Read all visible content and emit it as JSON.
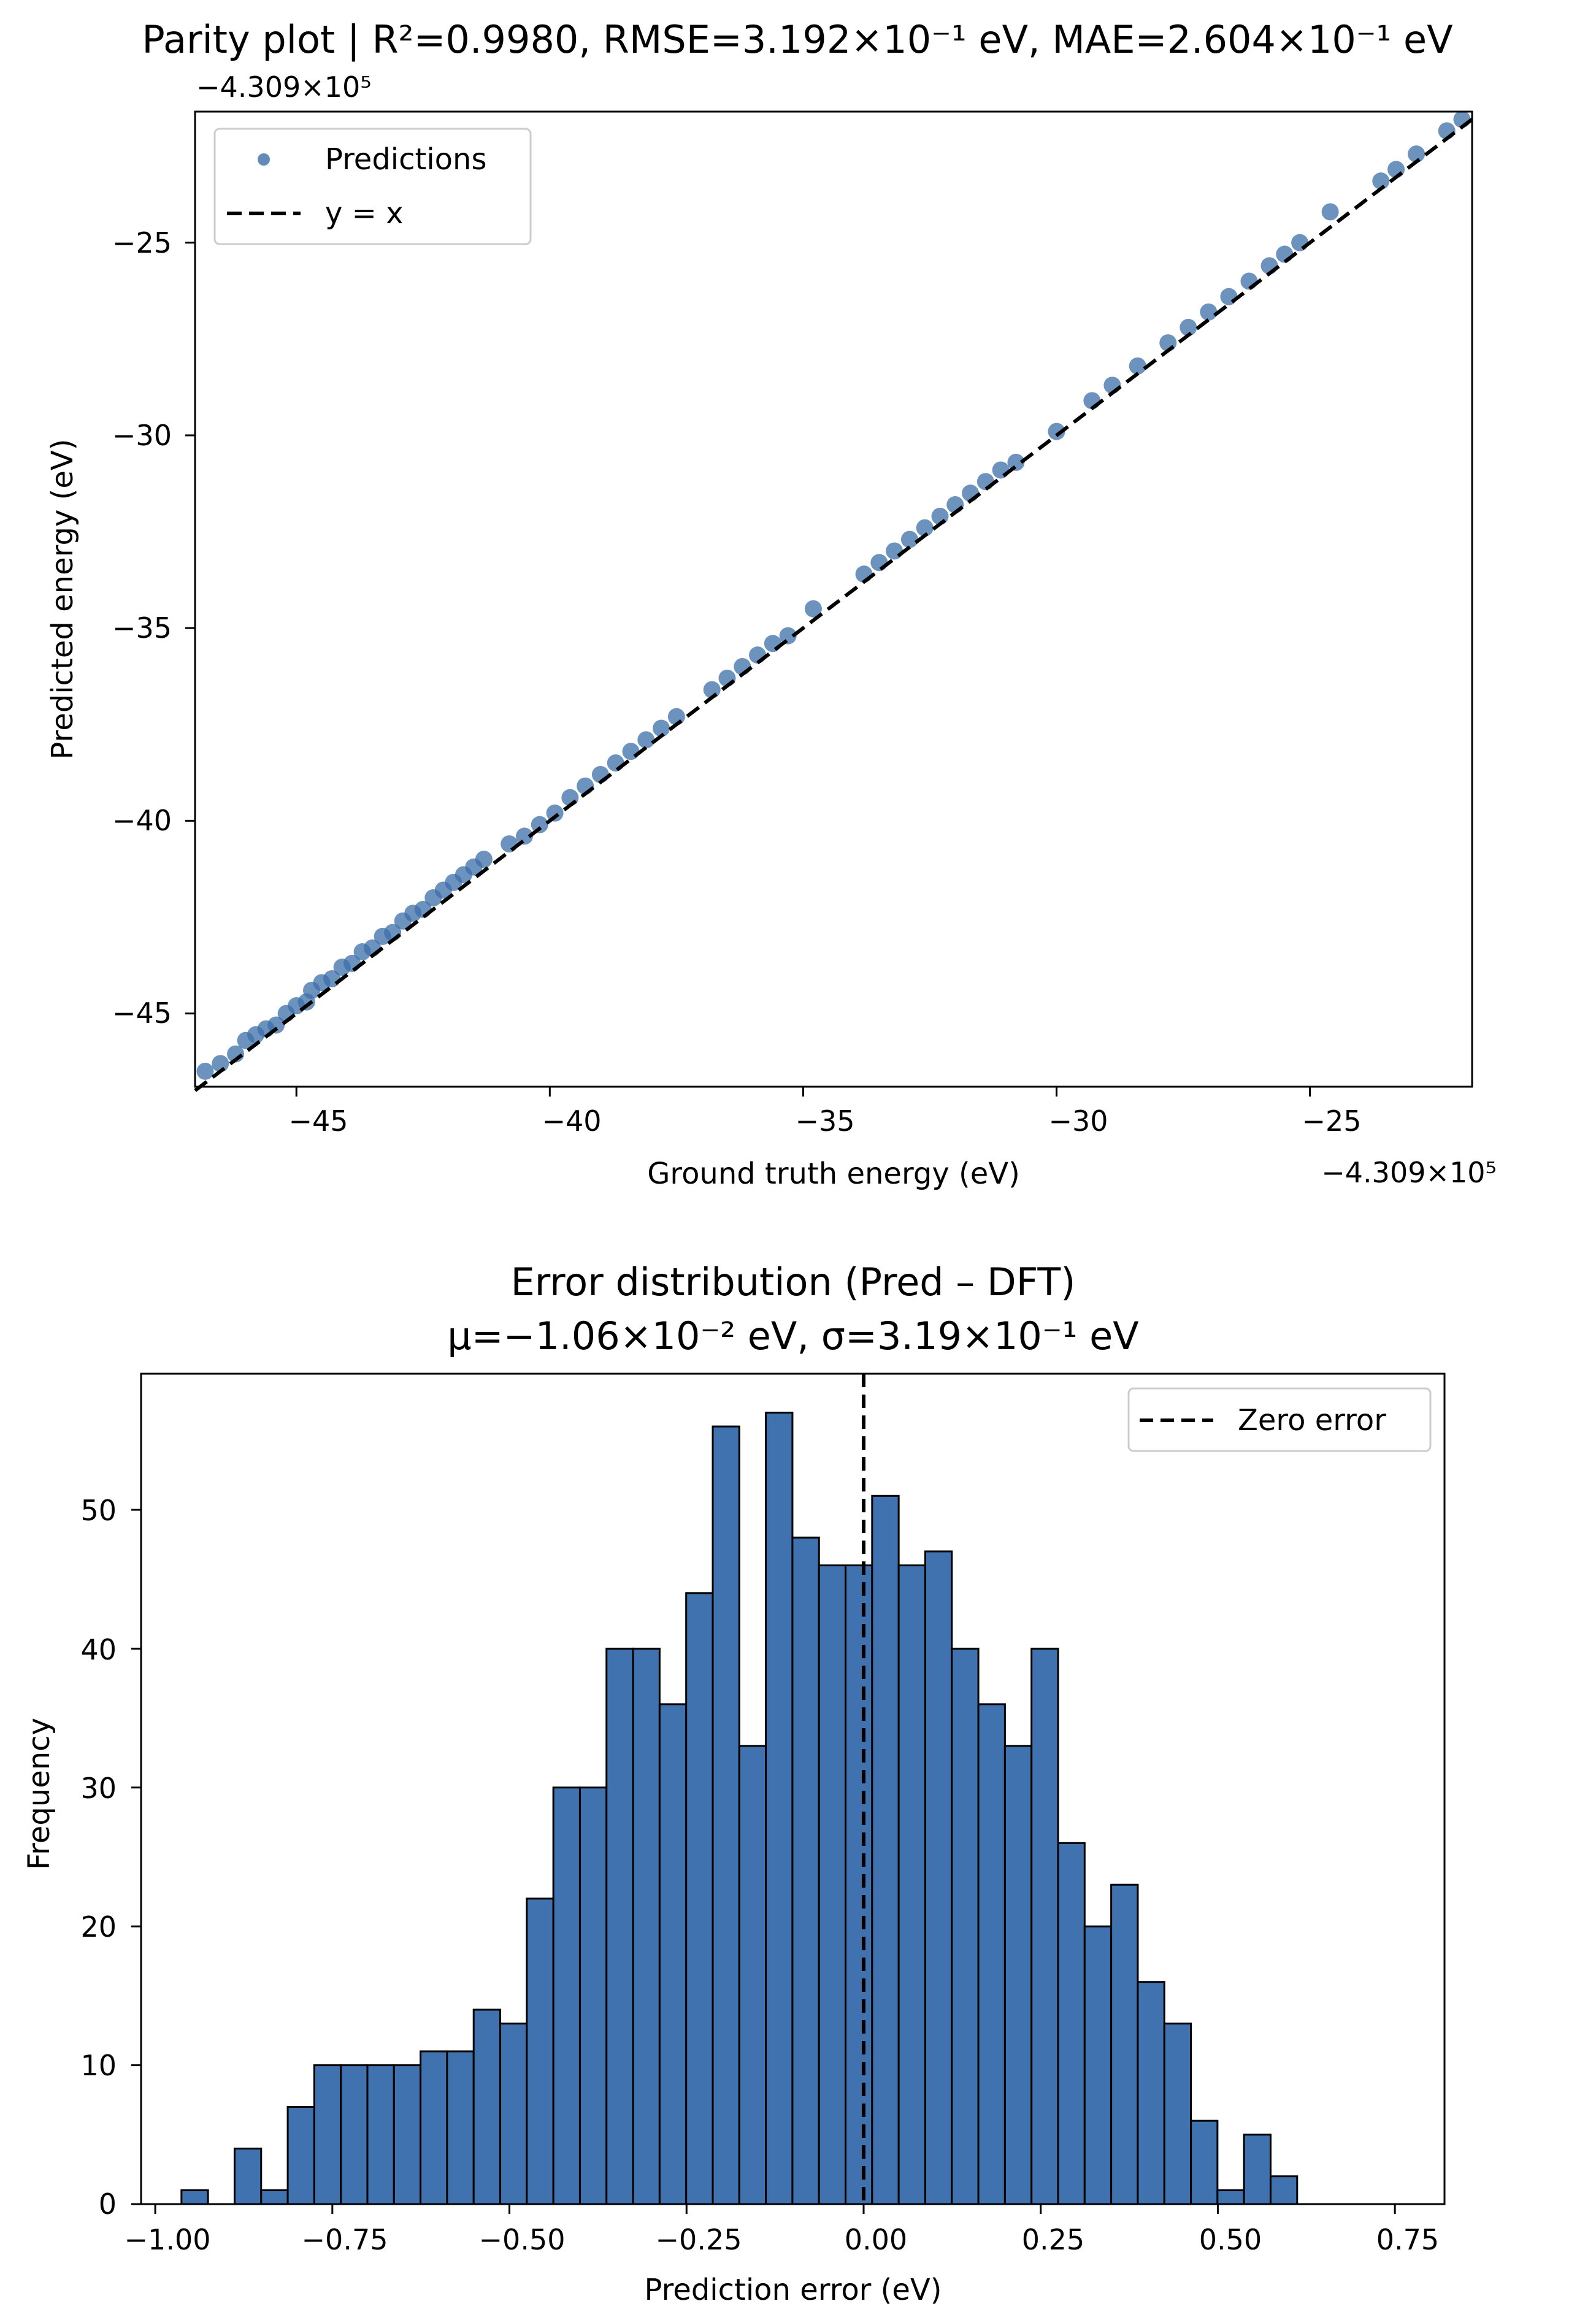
{
  "chart_data": [
    {
      "type": "scatter",
      "title": "Parity plot  |  R²=0.9980, RMSE=3.192×10⁻¹ eV, MAE=2.604×10⁻¹ eV",
      "xlabel": "Ground truth energy (eV)",
      "ylabel": "Predicted energy (eV)",
      "x_offset_label": "−4.309×10⁵",
      "y_offset_label": "−4.309×10⁵",
      "xlim": [
        -47.0,
        -21.8
      ],
      "ylim": [
        -46.9,
        -21.6
      ],
      "xticks": [
        -45,
        -40,
        -35,
        -30,
        -25
      ],
      "yticks": [
        -45,
        -40,
        -35,
        -30,
        -25
      ],
      "xtick_labels": [
        "−45",
        "−40",
        "−35",
        "−30",
        "−25"
      ],
      "ytick_labels": [
        "−45",
        "−40",
        "−35",
        "−30",
        "−25"
      ],
      "legend": {
        "position": "upper-left",
        "entries": [
          "Predictions",
          "y = x"
        ]
      },
      "grid": false,
      "series": [
        {
          "name": "Predictions",
          "points": [
            [
              -46.8,
              -46.5
            ],
            [
              -46.5,
              -46.3
            ],
            [
              -46.2,
              -46.05
            ],
            [
              -46.0,
              -45.7
            ],
            [
              -45.8,
              -45.55
            ],
            [
              -45.6,
              -45.4
            ],
            [
              -45.4,
              -45.3
            ],
            [
              -45.2,
              -45.0
            ],
            [
              -45.0,
              -44.8
            ],
            [
              -44.8,
              -44.7
            ],
            [
              -44.7,
              -44.4
            ],
            [
              -44.5,
              -44.2
            ],
            [
              -44.3,
              -44.1
            ],
            [
              -44.1,
              -43.8
            ],
            [
              -43.9,
              -43.7
            ],
            [
              -43.7,
              -43.4
            ],
            [
              -43.5,
              -43.3
            ],
            [
              -43.3,
              -43.0
            ],
            [
              -43.1,
              -42.9
            ],
            [
              -42.9,
              -42.6
            ],
            [
              -42.7,
              -42.4
            ],
            [
              -42.5,
              -42.3
            ],
            [
              -42.3,
              -42.0
            ],
            [
              -42.1,
              -41.8
            ],
            [
              -41.9,
              -41.6
            ],
            [
              -41.7,
              -41.4
            ],
            [
              -41.5,
              -41.2
            ],
            [
              -41.3,
              -41.0
            ],
            [
              -40.8,
              -40.6
            ],
            [
              -40.5,
              -40.4
            ],
            [
              -40.2,
              -40.1
            ],
            [
              -39.9,
              -39.8
            ],
            [
              -39.6,
              -39.4
            ],
            [
              -39.3,
              -39.1
            ],
            [
              -39.0,
              -38.8
            ],
            [
              -38.7,
              -38.5
            ],
            [
              -38.4,
              -38.2
            ],
            [
              -38.1,
              -37.9
            ],
            [
              -37.8,
              -37.6
            ],
            [
              -37.5,
              -37.3
            ],
            [
              -36.8,
              -36.6
            ],
            [
              -36.5,
              -36.3
            ],
            [
              -36.2,
              -36.0
            ],
            [
              -35.9,
              -35.7
            ],
            [
              -35.6,
              -35.4
            ],
            [
              -35.3,
              -35.2
            ],
            [
              -34.8,
              -34.5
            ],
            [
              -33.8,
              -33.6
            ],
            [
              -33.5,
              -33.3
            ],
            [
              -33.2,
              -33.0
            ],
            [
              -32.9,
              -32.7
            ],
            [
              -32.6,
              -32.4
            ],
            [
              -32.3,
              -32.1
            ],
            [
              -32.0,
              -31.8
            ],
            [
              -31.7,
              -31.5
            ],
            [
              -31.4,
              -31.2
            ],
            [
              -31.1,
              -30.9
            ],
            [
              -30.8,
              -30.7
            ],
            [
              -30.0,
              -29.9
            ],
            [
              -29.3,
              -29.1
            ],
            [
              -28.9,
              -28.7
            ],
            [
              -28.4,
              -28.2
            ],
            [
              -27.8,
              -27.6
            ],
            [
              -27.4,
              -27.2
            ],
            [
              -27.0,
              -26.8
            ],
            [
              -26.6,
              -26.4
            ],
            [
              -26.2,
              -26.0
            ],
            [
              -25.8,
              -25.6
            ],
            [
              -25.5,
              -25.3
            ],
            [
              -25.2,
              -25.0
            ],
            [
              -24.6,
              -24.2
            ],
            [
              -23.6,
              -23.4
            ],
            [
              -23.3,
              -23.1
            ],
            [
              -22.9,
              -22.7
            ],
            [
              -22.3,
              -22.1
            ],
            [
              -22.0,
              -21.8
            ]
          ]
        }
      ],
      "reference_line": {
        "name": "y = x",
        "x": [
          -47.0,
          -21.8
        ],
        "y": [
          -47.0,
          -21.8
        ]
      },
      "colors": {
        "points": "#3b6ea8",
        "line": "#000000"
      }
    },
    {
      "type": "bar",
      "subtype": "histogram",
      "title": "Error distribution (Pred – DFT)",
      "subtitle": "μ=−1.06×10⁻² eV, σ=3.19×10⁻¹ eV",
      "xlabel": "Prediction error (eV)",
      "ylabel": "Frequency",
      "xlim": [
        -1.02,
        0.82
      ],
      "ylim": [
        0,
        59.8
      ],
      "xticks": [
        -1.0,
        -0.75,
        -0.5,
        -0.25,
        0.0,
        0.25,
        0.5,
        0.75
      ],
      "xtick_labels": [
        "−1.00",
        "−0.75",
        "−0.50",
        "−0.25",
        "0.00",
        "0.25",
        "0.50",
        "0.75"
      ],
      "yticks": [
        0,
        10,
        20,
        30,
        40,
        50
      ],
      "ytick_labels": [
        "0",
        "10",
        "20",
        "30",
        "40",
        "50"
      ],
      "bin_start": -0.963,
      "bin_width": 0.0375,
      "counts": [
        1,
        0,
        4,
        1,
        7,
        10,
        10,
        10,
        10,
        11,
        11,
        14,
        13,
        22,
        30,
        30,
        40,
        40,
        36,
        44,
        56,
        33,
        57,
        48,
        46,
        46,
        51,
        46,
        47,
        40,
        36,
        33,
        40,
        26,
        20,
        23,
        16,
        13,
        6,
        1,
        5,
        2
      ],
      "zero_line": {
        "name": "Zero error",
        "x": 0.0
      },
      "legend": {
        "position": "upper-right",
        "entries": [
          "Zero error"
        ]
      },
      "grid": false,
      "colors": {
        "bars": "#3f72af",
        "edge": "#000000",
        "line": "#000000"
      }
    }
  ]
}
